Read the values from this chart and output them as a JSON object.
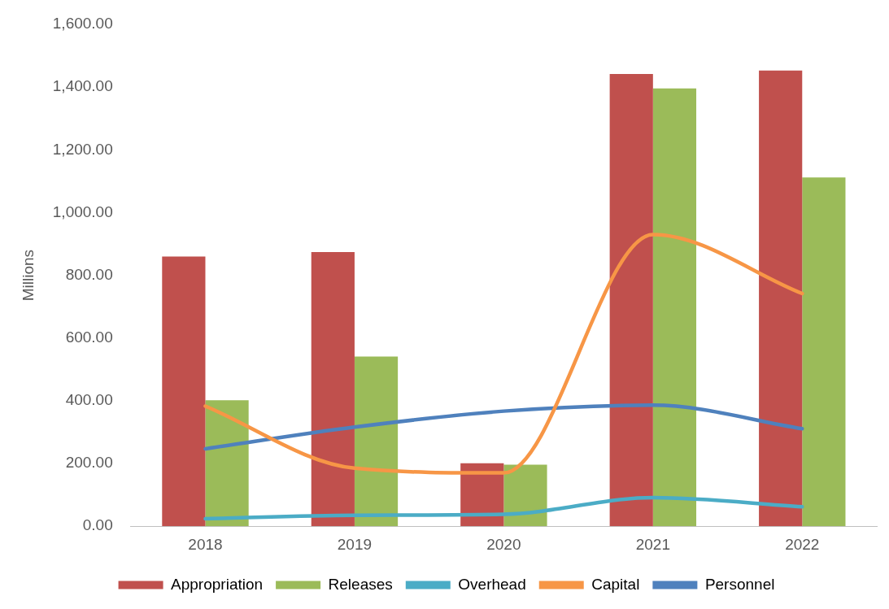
{
  "chart_data": {
    "type": "bar",
    "ylabel": "Millions",
    "categories": [
      "2018",
      "2019",
      "2020",
      "2021",
      "2022"
    ],
    "series": [
      {
        "name": "Appropriation",
        "color": "#c0504d",
        "values": [
          860,
          874,
          201,
          1442,
          1453
        ]
      },
      {
        "name": "Releases",
        "color": "#9bbb59",
        "values": [
          402,
          541,
          196,
          1396,
          1112
        ]
      },
      {
        "name": "Overhead",
        "type": "line",
        "color": "#4bacc6",
        "values": [
          24,
          35,
          38,
          91,
          62
        ]
      },
      {
        "name": "Capital",
        "type": "line",
        "color": "#f79646",
        "values": [
          383,
          185,
          170,
          930,
          742
        ]
      },
      {
        "name": "Personnel",
        "type": "line",
        "color": "#4f81bd",
        "values": [
          247,
          316,
          367,
          386,
          311
        ]
      }
    ],
    "ylim": [
      0,
      1600
    ],
    "yticks": [
      {
        "value": 0,
        "label": "0.00"
      },
      {
        "value": 200,
        "label": "200.00"
      },
      {
        "value": 400,
        "label": "400.00"
      },
      {
        "value": 600,
        "label": "600.00"
      },
      {
        "value": 800,
        "label": "800.00"
      },
      {
        "value": 1000,
        "label": "1,000.00"
      },
      {
        "value": 1200,
        "label": "1,200.00"
      },
      {
        "value": 1400,
        "label": "1,400.00"
      },
      {
        "value": 1600,
        "label": "1,600.00"
      }
    ],
    "grid": false,
    "legend": "bottom",
    "marker": "none"
  }
}
